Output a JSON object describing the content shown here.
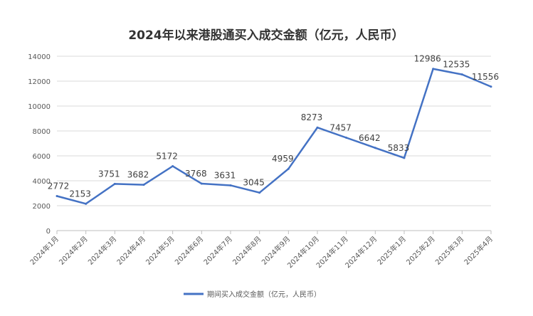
{
  "chart_data": {
    "type": "line",
    "title": "2024年以来港股通买入成交金额（亿元，人民币）",
    "xlabel": "",
    "ylabel": "",
    "categories": [
      "2024年1月",
      "2024年2月",
      "2024年3月",
      "2024年4月",
      "2024年5月",
      "2024年6月",
      "2024年7月",
      "2024年8月",
      "2024年9月",
      "2024年10月",
      "2024年11月",
      "2024年12月",
      "2025年1月",
      "2025年2月",
      "2025年3月",
      "2025年4月"
    ],
    "series": [
      {
        "name": "期间买入成交金额（亿元，人民币）",
        "values": [
          2772,
          2153,
          3751,
          3682,
          5172,
          3768,
          3631,
          3045,
          4959,
          8273,
          7457,
          6642,
          5833,
          12986,
          12535,
          11556
        ],
        "color": "#4472C4"
      }
    ],
    "ylim": [
      0,
      14000
    ],
    "yticks": [
      0,
      2000,
      4000,
      6000,
      8000,
      10000,
      12000,
      14000
    ],
    "grid": true,
    "legend_position": "bottom"
  }
}
